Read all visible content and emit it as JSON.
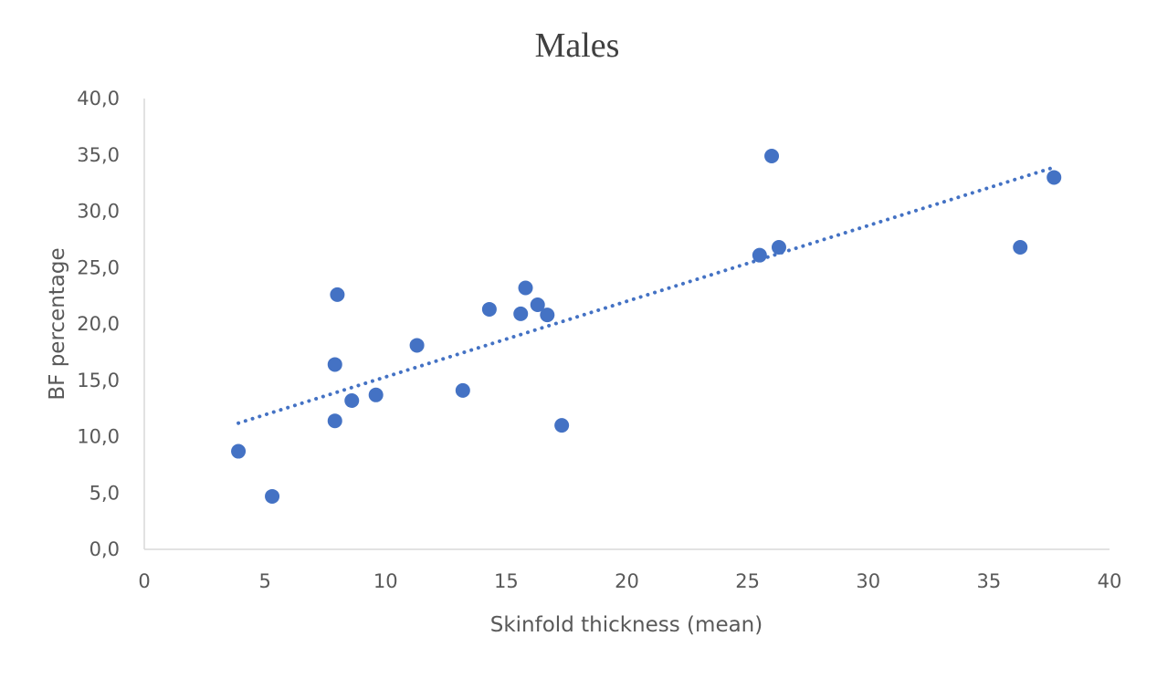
{
  "chart_data": {
    "type": "scatter",
    "title": "Males",
    "xlabel": "Skinfold thickness (mean)",
    "ylabel": "BF percentage",
    "xlim": [
      0,
      40
    ],
    "ylim": [
      0,
      40
    ],
    "x_ticks": [
      0,
      5,
      10,
      15,
      20,
      25,
      30,
      35,
      40
    ],
    "x_tick_labels": [
      "0",
      "5",
      "10",
      "15",
      "20",
      "25",
      "30",
      "35",
      "40"
    ],
    "y_ticks": [
      0,
      5,
      10,
      15,
      20,
      25,
      30,
      35,
      40
    ],
    "y_tick_labels": [
      "0,0",
      "5,0",
      "10,0",
      "15,0",
      "20,0",
      "25,0",
      "30,0",
      "35,0",
      "40,0"
    ],
    "grid": false,
    "legend": "none",
    "series": [
      {
        "color": "#4472C4",
        "points": [
          {
            "x": 3.9,
            "y": 8.7
          },
          {
            "x": 5.3,
            "y": 4.7
          },
          {
            "x": 7.9,
            "y": 11.4
          },
          {
            "x": 7.9,
            "y": 16.4
          },
          {
            "x": 8.0,
            "y": 22.6
          },
          {
            "x": 8.6,
            "y": 13.2
          },
          {
            "x": 9.6,
            "y": 13.7
          },
          {
            "x": 11.3,
            "y": 18.1
          },
          {
            "x": 13.2,
            "y": 14.1
          },
          {
            "x": 14.3,
            "y": 21.3
          },
          {
            "x": 15.6,
            "y": 20.9
          },
          {
            "x": 15.8,
            "y": 23.2
          },
          {
            "x": 16.3,
            "y": 21.7
          },
          {
            "x": 16.7,
            "y": 20.8
          },
          {
            "x": 17.3,
            "y": 11.0
          },
          {
            "x": 25.5,
            "y": 26.1
          },
          {
            "x": 26.0,
            "y": 34.9
          },
          {
            "x": 26.3,
            "y": 26.8
          },
          {
            "x": 36.3,
            "y": 26.8
          },
          {
            "x": 37.7,
            "y": 33.0
          }
        ]
      }
    ],
    "trendline": {
      "type": "linear",
      "style": "dotted",
      "color": "#4472C4",
      "x_range": [
        3.9,
        37.7
      ],
      "y_range": [
        11.2,
        33.9
      ]
    }
  }
}
